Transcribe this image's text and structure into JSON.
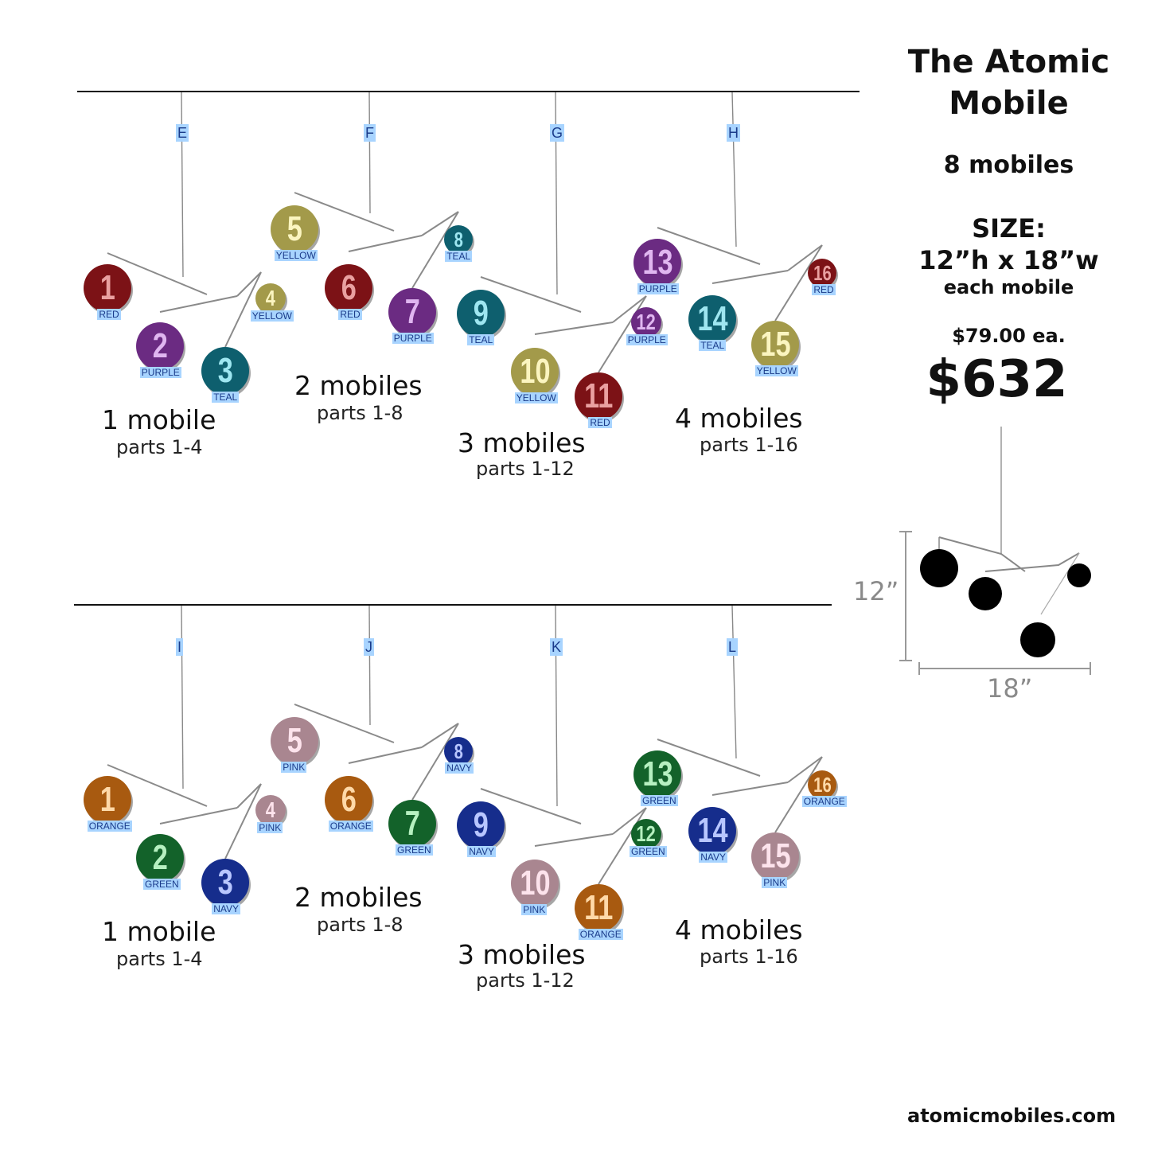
{
  "title_line1": "The Atomic",
  "title_line2": "Mobile",
  "count": "8 mobiles",
  "size_label": "SIZE:",
  "size_value": "12”h x 18”w",
  "size_note": "each mobile",
  "price_each": "$79.00 ea.",
  "price_total": "$632",
  "website": "atomicmobiles.com",
  "diagram": {
    "height": "12”",
    "width": "18”"
  },
  "colors": {
    "RED": "#7c1216",
    "PURPLE": "#6b2b82",
    "TEAL": "#0e5f6e",
    "YELLOW": "#a39a4a",
    "ORANGE": "#a85a10",
    "GREEN": "#13622a",
    "NAVY": "#162d8c",
    "PINK": "#a98690"
  },
  "top": {
    "hooks": [
      "E",
      "F",
      "G",
      "H"
    ],
    "groups": [
      {
        "title": "1 mobile",
        "parts": "parts 1-4"
      },
      {
        "title": "2 mobiles",
        "parts": "parts 1-8"
      },
      {
        "title": "3 mobiles",
        "parts": "parts 1-12"
      },
      {
        "title": "4 mobiles",
        "parts": "parts 1-16"
      }
    ],
    "parts": [
      {
        "n": "1",
        "c": "RED"
      },
      {
        "n": "2",
        "c": "PURPLE"
      },
      {
        "n": "3",
        "c": "TEAL"
      },
      {
        "n": "4",
        "c": "YELLOW"
      },
      {
        "n": "5",
        "c": "YELLOW"
      },
      {
        "n": "6",
        "c": "RED"
      },
      {
        "n": "7",
        "c": "PURPLE"
      },
      {
        "n": "8",
        "c": "TEAL"
      },
      {
        "n": "9",
        "c": "TEAL"
      },
      {
        "n": "10",
        "c": "YELLOW"
      },
      {
        "n": "11",
        "c": "RED"
      },
      {
        "n": "12",
        "c": "PURPLE"
      },
      {
        "n": "13",
        "c": "PURPLE"
      },
      {
        "n": "14",
        "c": "TEAL"
      },
      {
        "n": "15",
        "c": "YELLOW"
      },
      {
        "n": "16",
        "c": "RED"
      }
    ]
  },
  "bottom": {
    "hooks": [
      "I",
      "J",
      "K",
      "L"
    ],
    "groups": [
      {
        "title": "1 mobile",
        "parts": "parts 1-4"
      },
      {
        "title": "2 mobiles",
        "parts": "parts 1-8"
      },
      {
        "title": "3 mobiles",
        "parts": "parts 1-12"
      },
      {
        "title": "4 mobiles",
        "parts": "parts 1-16"
      }
    ],
    "parts": [
      {
        "n": "1",
        "c": "ORANGE"
      },
      {
        "n": "2",
        "c": "GREEN"
      },
      {
        "n": "3",
        "c": "NAVY"
      },
      {
        "n": "4",
        "c": "PINK"
      },
      {
        "n": "5",
        "c": "PINK"
      },
      {
        "n": "6",
        "c": "ORANGE"
      },
      {
        "n": "7",
        "c": "GREEN"
      },
      {
        "n": "8",
        "c": "NAVY"
      },
      {
        "n": "9",
        "c": "NAVY"
      },
      {
        "n": "10",
        "c": "PINK"
      },
      {
        "n": "11",
        "c": "ORANGE"
      },
      {
        "n": "12",
        "c": "GREEN"
      },
      {
        "n": "13",
        "c": "GREEN"
      },
      {
        "n": "14",
        "c": "NAVY"
      },
      {
        "n": "15",
        "c": "PINK"
      },
      {
        "n": "16",
        "c": "ORANGE"
      }
    ]
  }
}
